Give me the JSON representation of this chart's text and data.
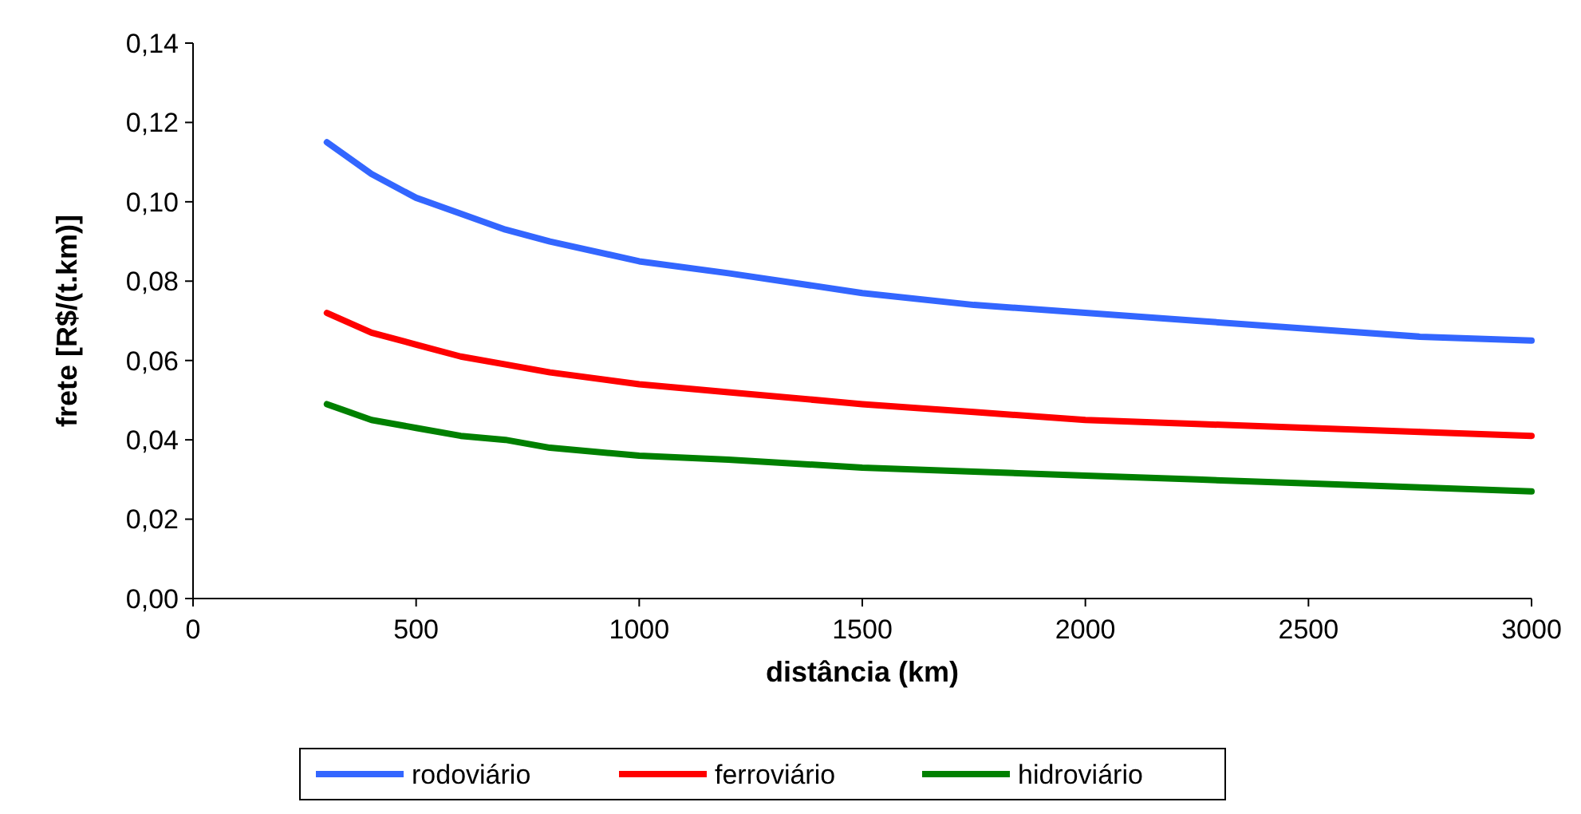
{
  "chart_data": {
    "type": "line",
    "xlabel": "distância (km)",
    "ylabel": "frete [R$/(t.km)]",
    "x": [
      300,
      400,
      500,
      600,
      700,
      800,
      1000,
      1200,
      1500,
      1750,
      2000,
      2250,
      2500,
      2750,
      3000
    ],
    "series": [
      {
        "name": "rodoviário",
        "color": "#3366ff",
        "values": [
          0.115,
          0.107,
          0.101,
          0.097,
          0.093,
          0.09,
          0.085,
          0.082,
          0.077,
          0.074,
          0.072,
          0.07,
          0.068,
          0.066,
          0.065
        ]
      },
      {
        "name": "ferroviário",
        "color": "#ff0000",
        "values": [
          0.072,
          0.067,
          0.064,
          0.061,
          0.059,
          0.057,
          0.054,
          0.052,
          0.049,
          0.047,
          0.045,
          0.044,
          0.043,
          0.042,
          0.041
        ]
      },
      {
        "name": "hidroviário",
        "color": "#008000",
        "values": [
          0.049,
          0.045,
          0.043,
          0.041,
          0.04,
          0.038,
          0.036,
          0.035,
          0.033,
          0.032,
          0.031,
          0.03,
          0.029,
          0.028,
          0.027
        ]
      }
    ],
    "xlim": [
      0,
      3000
    ],
    "xticks": [
      0,
      500,
      1000,
      1500,
      2000,
      2500,
      3000
    ],
    "ylim": [
      0,
      0.14
    ],
    "yticks": [
      {
        "value": 0,
        "label": "0,00"
      },
      {
        "value": 0.02,
        "label": "0,02"
      },
      {
        "value": 0.04,
        "label": "0,04"
      },
      {
        "value": 0.06,
        "label": "0,06"
      },
      {
        "value": 0.08,
        "label": "0,08"
      },
      {
        "value": 0.1,
        "label": "0,10"
      },
      {
        "value": 0.12,
        "label": "0,12"
      },
      {
        "value": 0.14,
        "label": "0,14"
      }
    ],
    "grid": false,
    "legend": "bottom",
    "marker": "none",
    "line_style": "solid"
  }
}
